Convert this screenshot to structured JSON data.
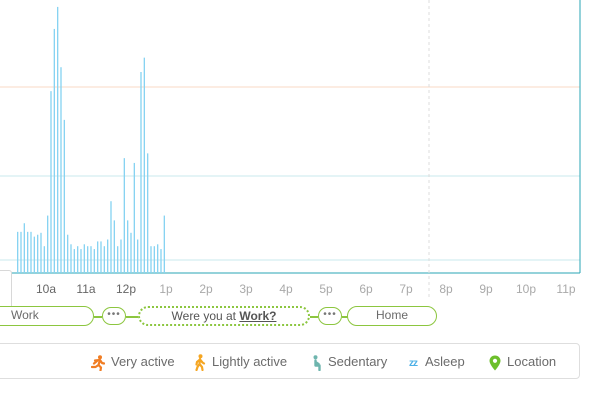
{
  "chart_data": {
    "type": "bar",
    "x_ticks": [
      "10a",
      "11a",
      "12p",
      "1p",
      "2p",
      "3p",
      "4p",
      "5p",
      "6p",
      "7p",
      "8p",
      "9p",
      "10p",
      "11p"
    ],
    "x_start": "9:15a",
    "interval_minutes": 5,
    "values": [
      43,
      43,
      52,
      43,
      43,
      38,
      40,
      42,
      28,
      60,
      190,
      255,
      278,
      215,
      160,
      40,
      30,
      25,
      28,
      25,
      30,
      28,
      28,
      25,
      33,
      33,
      28,
      35,
      75,
      55,
      28,
      35,
      120,
      55,
      42,
      115,
      35,
      210,
      225,
      125,
      28,
      28,
      30,
      25,
      60
    ],
    "ylim": [
      0,
      280
    ],
    "grid": true
  },
  "timeline": {
    "work_label": "Work",
    "prompt_prefix": "Were you at ",
    "prompt_place": "Work?",
    "home_label": "Home",
    "more_label": "•••"
  },
  "legend": {
    "very_active": "Very active",
    "lightly_active": "Lightly active",
    "sedentary": "Sedentary",
    "asleep": "Asleep",
    "asleep_glyph": "zz",
    "location": "Location"
  },
  "colors": {
    "bar": "#87d3f2",
    "very_active": "#f07d24",
    "lightly_active": "#f5a623",
    "sedentary": "#6eb5ae",
    "asleep": "#4db0e6",
    "location": "#6cbf2b",
    "timeline": "#8cc63f"
  }
}
